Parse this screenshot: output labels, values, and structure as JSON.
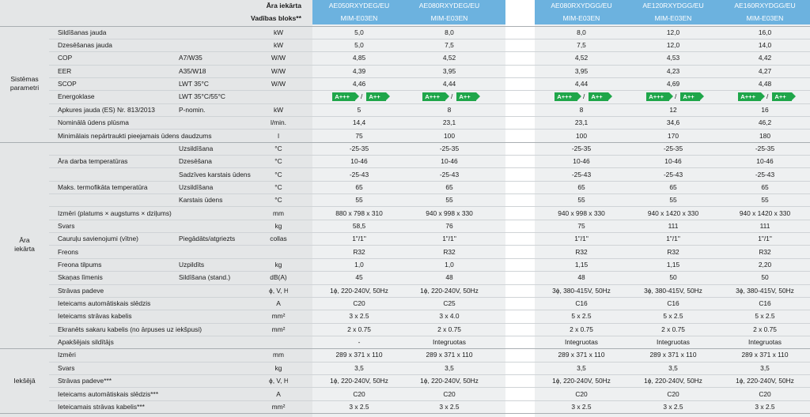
{
  "header": {
    "label1": "Āra iekārta",
    "label2": "Vadības bloks**",
    "models": [
      "AE050RXYDEG/EU",
      "AE080RXYDEG/EU",
      "AE080RXYDGG/EU",
      "AE120RXYDGG/EU",
      "AE160RXYDGG/EU"
    ],
    "control": [
      "MIM-E03EN",
      "MIM-E03EN",
      "MIM-E03EN",
      "MIM-E03EN",
      "MIM-E03EN"
    ]
  },
  "groups": [
    {
      "label": [
        "Sistēmas",
        "parametri"
      ],
      "rows": [
        {
          "name": "Sildīšanas jauda",
          "cond": "",
          "unit": "kW",
          "v": [
            "5,0",
            "8,0",
            "8,0",
            "12,0",
            "16,0"
          ]
        },
        {
          "name": "Dzesēšanas jauda",
          "cond": "",
          "unit": "kW",
          "v": [
            "5,0",
            "7,5",
            "7,5",
            "12,0",
            "14,0"
          ]
        },
        {
          "name": "COP",
          "cond": "A7/W35",
          "unit": "W/W",
          "v": [
            "4,85",
            "4,52",
            "4,52",
            "4,53",
            "4,42"
          ]
        },
        {
          "name": "EER",
          "cond": "A35/W18",
          "unit": "W/W",
          "v": [
            "4,39",
            "3,95",
            "3,95",
            "4,23",
            "4,27"
          ]
        },
        {
          "name": "SCOP",
          "cond": "LWT 35°C",
          "unit": "W/W",
          "v": [
            "4,46",
            "4,44",
            "4,44",
            "4,69",
            "4,48"
          ]
        },
        {
          "name": "Energoklase",
          "cond": "LWT 35°C/55°C",
          "unit": "",
          "badges": true,
          "v": []
        },
        {
          "name": "Apkures jauda (ES) Nr. 813/2013",
          "cond": "P-nomin.",
          "unit": "kW",
          "v": [
            "5",
            "8",
            "8",
            "12",
            "16"
          ]
        },
        {
          "name": "Nominālā ūdens plūsma",
          "cond": "",
          "unit": "l/min.",
          "v": [
            "14,4",
            "23,1",
            "23,1",
            "34,6",
            "46,2"
          ]
        },
        {
          "name": "Minimālais nepārtraukti pieejamais ūdens daudzums",
          "cond": "",
          "unit": "l",
          "v": [
            "75",
            "100",
            "100",
            "170",
            "180"
          ]
        }
      ]
    },
    {
      "label": [
        "Āra",
        "iekārta"
      ],
      "rows": [
        {
          "name": "",
          "cond": "Uzsildīšana",
          "unit": "°C",
          "v": [
            "-25-35",
            "-25-35",
            "-25-35",
            "-25-35",
            "-25-35"
          ]
        },
        {
          "name": "Āra darba temperatūras",
          "cond": "Dzesēšana",
          "unit": "°C",
          "v": [
            "10-46",
            "10-46",
            "10-46",
            "10-46",
            "10-46"
          ]
        },
        {
          "name": "",
          "cond": "Sadzīves karstais ūdens",
          "unit": "°C",
          "v": [
            "-25-43",
            "-25-43",
            "-25-43",
            "-25-43",
            "-25-43"
          ]
        },
        {
          "name": "Maks. termofikāta temperatūra",
          "cond": "Uzsildīšana",
          "unit": "°C",
          "v": [
            "65",
            "65",
            "65",
            "65",
            "65"
          ]
        },
        {
          "name": "",
          "cond": "Karstais ūdens",
          "unit": "°C",
          "v": [
            "55",
            "55",
            "55",
            "55",
            "55"
          ]
        },
        {
          "name": "Izmēri (platums × augstums × dziļums)",
          "cond": "",
          "unit": "mm",
          "v": [
            "880 x 798 x 310",
            "940 x 998 x 330",
            "940 x 998 x 330",
            "940 x 1420 x 330",
            "940 x 1420 x 330"
          ]
        },
        {
          "name": "Svars",
          "cond": "",
          "unit": "kg",
          "v": [
            "58,5",
            "76",
            "75",
            "111",
            "111"
          ]
        },
        {
          "name": "Cauruļu savienojumi (vītne)",
          "cond": "Piegādāts/atgriezts",
          "unit": "collas",
          "v": [
            "1\"/1\"",
            "1\"/1\"",
            "1\"/1\"",
            "1\"/1\"",
            "1\"/1\""
          ]
        },
        {
          "name": "Freons",
          "cond": "",
          "unit": "",
          "v": [
            "R32",
            "R32",
            "R32",
            "R32",
            "R32"
          ]
        },
        {
          "name": "Freona tilpums",
          "cond": "Uzpildīts",
          "unit": "kg",
          "v": [
            "1,0",
            "1,0",
            "1,15",
            "1,15",
            "2,20"
          ]
        },
        {
          "name": "Skaņas līmenis",
          "cond": "Sildīšana (stand.)",
          "unit": "dB(A)",
          "v": [
            "45",
            "48",
            "48",
            "50",
            "50"
          ]
        },
        {
          "name": "Strāvas padeve",
          "cond": "",
          "unit": "ϕ, V, Hz",
          "v": [
            "1ϕ, 220-240V, 50Hz",
            "1ϕ, 220-240V, 50Hz",
            "3ϕ, 380-415V, 50Hz",
            "3ϕ, 380-415V, 50Hz",
            "3ϕ, 380-415V, 50Hz"
          ]
        },
        {
          "name": "Ieteicams automātiskais slēdzis",
          "cond": "",
          "unit": "A",
          "v": [
            "C20",
            "C25",
            "C16",
            "C16",
            "C16"
          ]
        },
        {
          "name": "Ieteicams strāvas kabelis",
          "cond": "",
          "unit": "mm²",
          "v": [
            "3 x 2.5",
            "3 x 4.0",
            "5 x 2.5",
            "5 x 2.5",
            "5 x 2.5"
          ]
        },
        {
          "name": "Ekranēts sakaru kabelis (no ārpuses uz iekšpusi)",
          "cond": "",
          "unit": "mm²",
          "v": [
            "2 x 0.75",
            "2 x 0.75",
            "2 x 0.75",
            "2 x 0.75",
            "2 x 0.75"
          ]
        },
        {
          "name": "Apakšējais sildītājs",
          "cond": "",
          "unit": "",
          "v": [
            "-",
            "Integruotas",
            "Integruotas",
            "Integruotas",
            "Integruotas"
          ]
        }
      ]
    },
    {
      "label": [
        "Iekšējā"
      ],
      "rows": [
        {
          "name": "Izmēri",
          "cond": "",
          "unit": "mm",
          "v": [
            "289 x 371 x 110",
            "289 x 371 x 110",
            "289 x 371 x 110",
            "289 x 371 x 110",
            "289 x 371 x 110"
          ]
        },
        {
          "name": "Svars",
          "cond": "",
          "unit": "kg",
          "v": [
            "3,5",
            "3,5",
            "3,5",
            "3,5",
            "3,5"
          ]
        },
        {
          "name": "Strāvas padeve***",
          "cond": "",
          "unit": "ϕ, V, Hz",
          "v": [
            "1ϕ, 220-240V, 50Hz",
            "1ϕ, 220-240V, 50Hz",
            "1ϕ, 220-240V, 50Hz",
            "1ϕ, 220-240V, 50Hz",
            "1ϕ, 220-240V, 50Hz"
          ]
        },
        {
          "name": "Ieteicams automātiskais slēdzis***",
          "cond": "",
          "unit": "A",
          "v": [
            "C20",
            "C20",
            "C20",
            "C20",
            "C20"
          ]
        },
        {
          "name": "Ieteicamais strāvas kabelis***",
          "cond": "",
          "unit": "mm²",
          "v": [
            "3 x 2.5",
            "3 x 2.5",
            "3 x 2.5",
            "3 x 2.5",
            "3 x 2.5"
          ]
        }
      ]
    }
  ],
  "energy_badge": {
    "primary": "A+++",
    "secondary": "A++",
    "separator": "/"
  },
  "colors": {
    "header_blue": "#6cb2df",
    "label_gray": "#e4e6e7",
    "value_gray": "#eef0f1",
    "badge_green": "#1fa64a"
  }
}
